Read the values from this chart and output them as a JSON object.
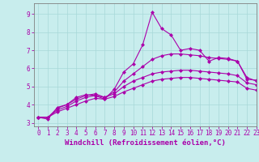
{
  "xlabel": "Windchill (Refroidissement éolien,°C)",
  "ylabel": "",
  "background_color": "#c8eded",
  "grid_color": "#a8d8d8",
  "line_color": "#aa00aa",
  "xlim": [
    -0.5,
    23
  ],
  "ylim": [
    2.8,
    9.6
  ],
  "xticks": [
    0,
    1,
    2,
    3,
    4,
    5,
    6,
    7,
    8,
    9,
    10,
    11,
    12,
    13,
    14,
    15,
    16,
    17,
    18,
    19,
    20,
    21,
    22,
    23
  ],
  "yticks": [
    3,
    4,
    5,
    6,
    7,
    8,
    9
  ],
  "x": [
    0,
    1,
    2,
    3,
    4,
    5,
    6,
    7,
    8,
    9,
    10,
    11,
    12,
    13,
    14,
    15,
    16,
    17,
    18,
    19,
    20,
    21,
    22,
    23
  ],
  "line1": [
    3.3,
    3.2,
    3.85,
    4.0,
    4.4,
    4.55,
    4.5,
    4.3,
    4.85,
    5.8,
    6.25,
    7.3,
    9.1,
    8.2,
    7.85,
    7.0,
    7.1,
    7.0,
    6.4,
    6.6,
    6.55,
    6.4,
    5.4,
    5.35
  ],
  "line2": [
    3.3,
    3.3,
    3.8,
    4.0,
    4.3,
    4.5,
    4.6,
    4.4,
    4.7,
    5.3,
    5.7,
    6.1,
    6.5,
    6.7,
    6.8,
    6.8,
    6.75,
    6.7,
    6.6,
    6.55,
    6.5,
    6.4,
    5.5,
    5.3
  ],
  "line3": [
    3.3,
    3.3,
    3.7,
    3.9,
    4.2,
    4.4,
    4.5,
    4.4,
    4.6,
    5.0,
    5.3,
    5.5,
    5.7,
    5.8,
    5.85,
    5.9,
    5.9,
    5.85,
    5.8,
    5.75,
    5.7,
    5.6,
    5.2,
    5.1
  ],
  "line4": [
    3.3,
    3.3,
    3.6,
    3.8,
    4.0,
    4.2,
    4.35,
    4.3,
    4.45,
    4.7,
    4.9,
    5.1,
    5.3,
    5.4,
    5.45,
    5.5,
    5.5,
    5.45,
    5.4,
    5.35,
    5.3,
    5.25,
    4.9,
    4.8
  ],
  "markersize": 2.5,
  "linewidth": 0.8,
  "tick_fontsize": 5.5,
  "xlabel_fontsize": 6.5
}
